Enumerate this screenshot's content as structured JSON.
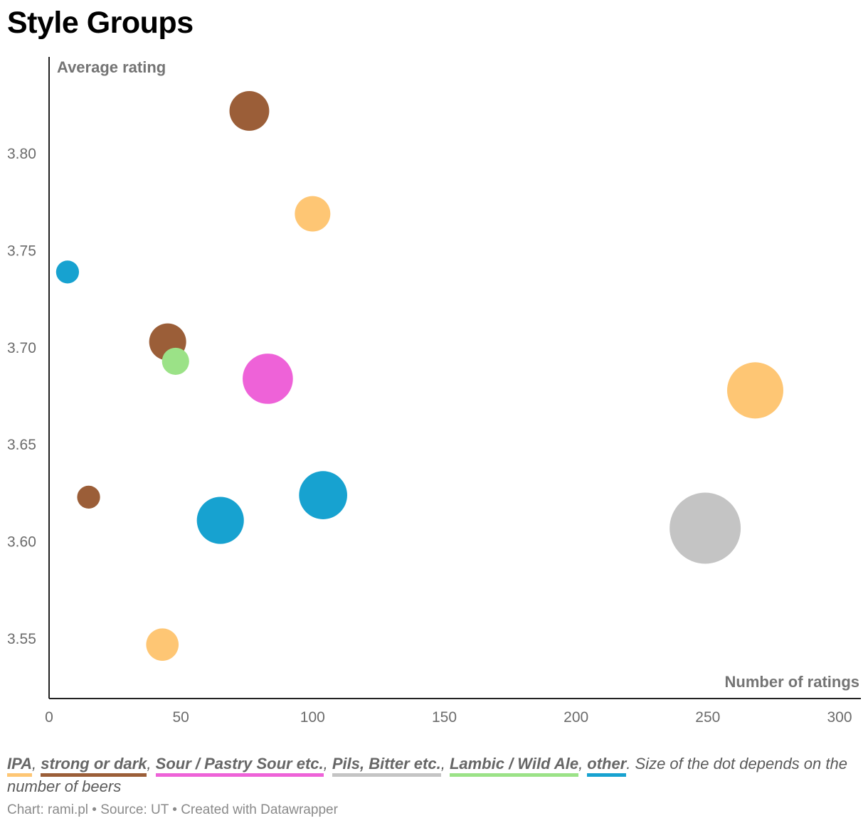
{
  "title": "Style Groups",
  "legend": {
    "items": [
      {
        "label": "IPA",
        "color": "#fec674"
      },
      {
        "label": "strong or dark",
        "color": "#9b5e38"
      },
      {
        "label": "Sour / Pastry Sour etc.",
        "color": "#ee62d8"
      },
      {
        "label": "Pils, Bitter etc.",
        "color": "#c4c4c4"
      },
      {
        "label": "Lambic / Wild Ale",
        "color": "#9be287"
      },
      {
        "label": "other",
        "color": "#17a2d0"
      }
    ],
    "note": ". Size of the dot depends on the number of beers"
  },
  "credits": "Chart: rami.pl • Source: UT • Created with Datawrapper",
  "chart_data": {
    "type": "scatter",
    "title": "Style Groups",
    "xlabel": "Number of ratings",
    "ylabel": "Average rating",
    "xlim": [
      0,
      300
    ],
    "ylim": [
      3.53,
      3.84
    ],
    "xticks": [
      0,
      50,
      100,
      150,
      200,
      250,
      300
    ],
    "yticks": [
      3.55,
      3.6,
      3.65,
      3.7,
      3.75,
      3.8
    ],
    "size_meaning": "number of beers (relative)",
    "series": [
      {
        "name": "IPA",
        "color": "#fec674",
        "points": [
          {
            "x": 100,
            "y": 3.769,
            "size": 6
          },
          {
            "x": 268,
            "y": 3.678,
            "size": 15
          },
          {
            "x": 43,
            "y": 3.547,
            "size": 5
          }
        ]
      },
      {
        "name": "strong or dark",
        "color": "#9b5e38",
        "points": [
          {
            "x": 76,
            "y": 3.822,
            "size": 7.5
          },
          {
            "x": 45,
            "y": 3.703,
            "size": 6.5
          },
          {
            "x": 15,
            "y": 3.623,
            "size": 2.5
          }
        ]
      },
      {
        "name": "Sour / Pastry Sour etc.",
        "color": "#ee62d8",
        "points": [
          {
            "x": 83,
            "y": 3.684,
            "size": 12
          }
        ]
      },
      {
        "name": "Pils, Bitter etc.",
        "color": "#c4c4c4",
        "points": [
          {
            "x": 249,
            "y": 3.607,
            "size": 24
          }
        ]
      },
      {
        "name": "Lambic / Wild Ale",
        "color": "#9be287",
        "points": [
          {
            "x": 48,
            "y": 3.693,
            "size": 3.5
          }
        ]
      },
      {
        "name": "other",
        "color": "#17a2d0",
        "points": [
          {
            "x": 7,
            "y": 3.739,
            "size": 2.5
          },
          {
            "x": 104,
            "y": 3.624,
            "size": 11
          },
          {
            "x": 65,
            "y": 3.611,
            "size": 10.5
          }
        ]
      }
    ]
  }
}
